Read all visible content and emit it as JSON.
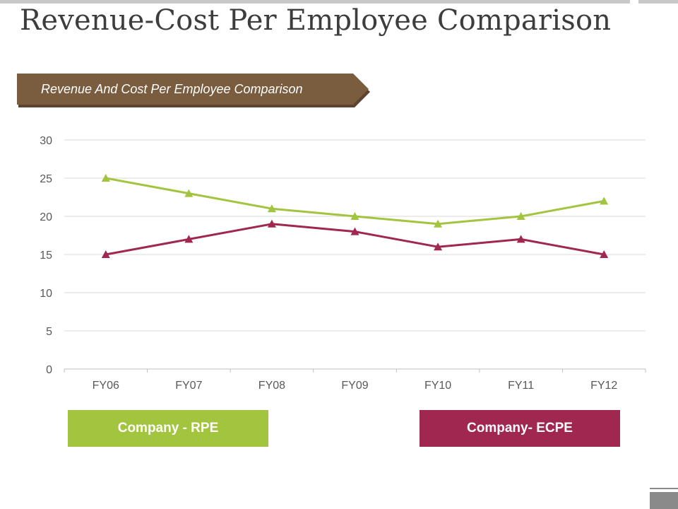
{
  "slide": {
    "title": "Revenue-Cost Per Employee Comparison",
    "banner_text": "Revenue And Cost Per Employee Comparison"
  },
  "colors": {
    "banner": "#7a5c3f",
    "banner_shadow": "#5c4430",
    "rpe": "#a3c43f",
    "ecpe": "#a02850",
    "grid": "#d9d9d9",
    "tick_text": "#595959"
  },
  "legend": {
    "rpe_label": "Company - RPE",
    "ecpe_label": "Company- ECPE"
  },
  "chart_data": {
    "type": "line",
    "categories": [
      "FY06",
      "FY07",
      "FY08",
      "FY09",
      "FY10",
      "FY11",
      "FY12"
    ],
    "series": [
      {
        "name": "Company - RPE",
        "color": "#a3c43f",
        "values": [
          25,
          23,
          21,
          20,
          19,
          20,
          22
        ]
      },
      {
        "name": "Company- ECPE",
        "color": "#a02850",
        "values": [
          15,
          17,
          19,
          18,
          16,
          17,
          15
        ]
      }
    ],
    "yticks": [
      0,
      5,
      10,
      15,
      20,
      25,
      30
    ],
    "ylim": [
      0,
      30
    ],
    "grid": true,
    "marker": "triangle",
    "legend_position": "bottom"
  }
}
